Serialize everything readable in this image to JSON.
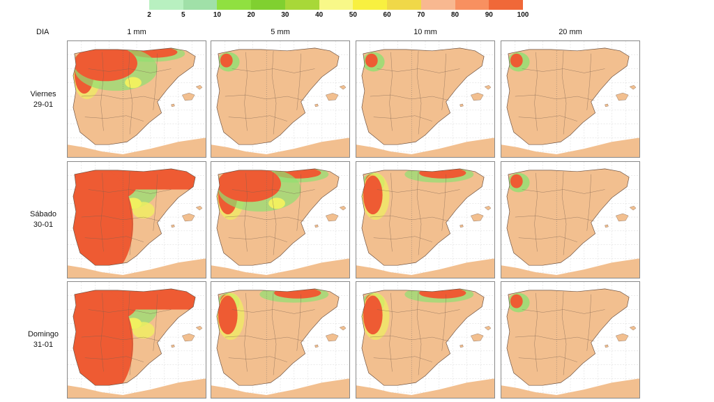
{
  "legend": {
    "ticks": [
      "2",
      "5",
      "10",
      "20",
      "30",
      "40",
      "50",
      "60",
      "70",
      "80",
      "90",
      "100"
    ],
    "colors": [
      "#b8f0c0",
      "#a0e0a8",
      "#90e040",
      "#80d030",
      "#a8d838",
      "#f8f888",
      "#f8f040",
      "#f0d848",
      "#f8b890",
      "#f89060",
      "#f06838"
    ]
  },
  "header": {
    "dia": "DIA",
    "columns": [
      "1 mm",
      "5 mm",
      "10 mm",
      "20 mm"
    ]
  },
  "rows": [
    {
      "day": "Viernes",
      "date": "29-01"
    },
    {
      "day": "Sábado",
      "date": "30-01"
    },
    {
      "day": "Domingo",
      "date": "31-01"
    }
  ],
  "map_colors": {
    "land": "#f2bf8f",
    "sea": "#ffffff",
    "high": "#ee5b33",
    "yellow": "#f0f060",
    "green": "#90e070",
    "light_green": "#b8f0c0"
  },
  "prob_levels": [
    [
      3,
      1,
      1,
      1
    ],
    [
      4,
      3,
      2,
      1
    ],
    [
      4,
      2,
      2,
      1
    ]
  ]
}
